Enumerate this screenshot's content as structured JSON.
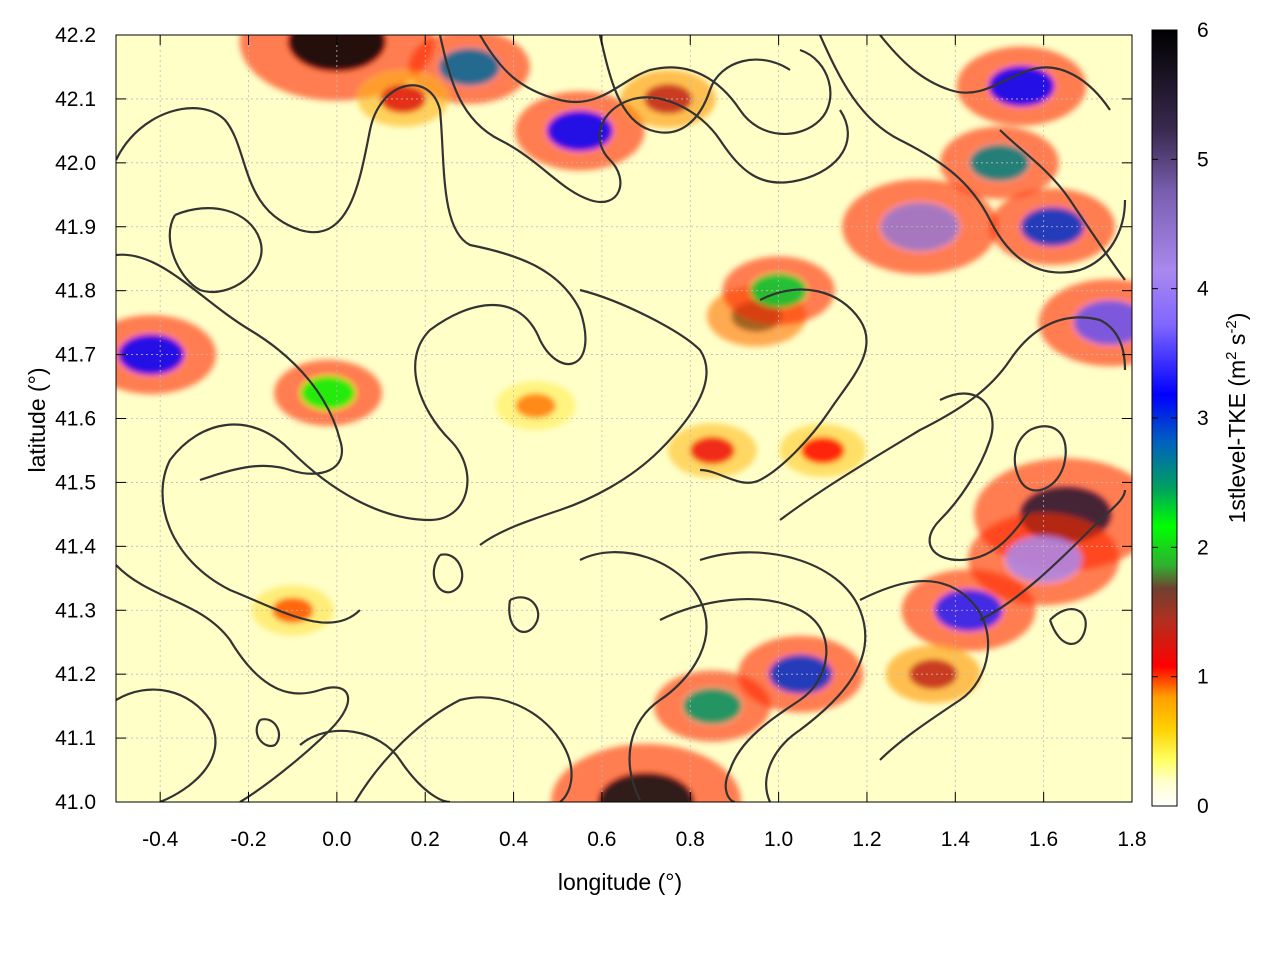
{
  "chart_data": {
    "type": "heatmap",
    "title": "",
    "xlabel": "longitude (°)",
    "ylabel": "latitude (°)",
    "xlim": [
      -0.5,
      1.8
    ],
    "ylim": [
      41.0,
      42.2
    ],
    "xticks": [
      "-0.4",
      "-0.2",
      "0.0",
      "0.2",
      "0.4",
      "0.6",
      "0.8",
      "1.0",
      "1.2",
      "1.4",
      "1.6",
      "1.8"
    ],
    "yticks": [
      "41.0",
      "41.1",
      "41.2",
      "41.3",
      "41.4",
      "41.5",
      "41.6",
      "41.7",
      "41.8",
      "41.9",
      "42.0",
      "42.1",
      "42.2"
    ],
    "grid": true,
    "colorbar": {
      "label_main": "1stlevel-TKE (m",
      "label_sup1": "2",
      "label_mid": " s",
      "label_sup2": "-2",
      "label_end": ")",
      "range": [
        0,
        6
      ],
      "ticks": [
        "0",
        "1",
        "2",
        "3",
        "4",
        "5",
        "6"
      ],
      "palette": [
        "#ffffff",
        "#ffff60",
        "#ffb000",
        "#ff0000",
        "#b03020",
        "#40c040",
        "#00ff00",
        "#0000ff",
        "#9966ff",
        "#302050",
        "#000000"
      ]
    },
    "hotspots": [
      {
        "lon": 0.95,
        "lat": 41.76,
        "value": 1.6
      },
      {
        "lon": 1.0,
        "lat": 41.8,
        "value": 2.2
      },
      {
        "lon": 1.32,
        "lat": 41.9,
        "value": 4.2
      },
      {
        "lon": 1.65,
        "lat": 41.45,
        "value": 5.5
      },
      {
        "lon": 1.6,
        "lat": 41.38,
        "value": 4.0
      },
      {
        "lon": 1.43,
        "lat": 41.3,
        "value": 3.2
      },
      {
        "lon": 1.05,
        "lat": 41.2,
        "value": 2.8
      },
      {
        "lon": 0.85,
        "lat": 41.15,
        "value": 2.4
      },
      {
        "lon": 0.7,
        "lat": 41.0,
        "value": 5.8
      },
      {
        "lon": 0.55,
        "lat": 42.05,
        "value": 3.0
      },
      {
        "lon": 0.3,
        "lat": 42.15,
        "value": 2.6
      },
      {
        "lon": 0.0,
        "lat": 42.19,
        "value": 6.0
      },
      {
        "lon": 1.5,
        "lat": 42.0,
        "value": 2.5
      },
      {
        "lon": 1.62,
        "lat": 41.9,
        "value": 2.8
      },
      {
        "lon": 1.75,
        "lat": 41.75,
        "value": 3.6
      },
      {
        "lon": -0.42,
        "lat": 41.7,
        "value": 3.0
      },
      {
        "lon": -0.02,
        "lat": 41.64,
        "value": 2.0
      },
      {
        "lon": 0.15,
        "lat": 42.1,
        "value": 1.2
      },
      {
        "lon": 1.35,
        "lat": 41.2,
        "value": 1.4
      },
      {
        "lon": 1.1,
        "lat": 41.55,
        "value": 1.0
      },
      {
        "lon": 0.85,
        "lat": 41.55,
        "value": 1.1
      },
      {
        "lon": 1.55,
        "lat": 42.12,
        "value": 3.0
      },
      {
        "lon": 0.75,
        "lat": 42.1,
        "value": 1.4
      },
      {
        "lon": 0.45,
        "lat": 41.62,
        "value": 0.7
      },
      {
        "lon": -0.1,
        "lat": 41.3,
        "value": 0.8
      }
    ]
  }
}
